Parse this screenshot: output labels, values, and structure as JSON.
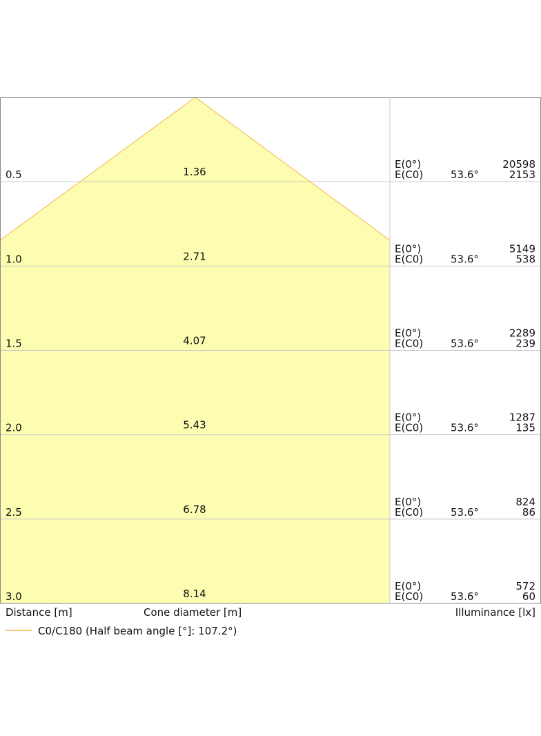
{
  "rows": [
    {
      "distance": "0.5",
      "diameter": "1.36",
      "e0_label": "E(0°)",
      "ec0_label": "E(C0)",
      "angle": "53.6°",
      "e0": "20598",
      "ec0": "2153"
    },
    {
      "distance": "1.0",
      "diameter": "2.71",
      "e0_label": "E(0°)",
      "ec0_label": "E(C0)",
      "angle": "53.6°",
      "e0": "5149",
      "ec0": "538"
    },
    {
      "distance": "1.5",
      "diameter": "4.07",
      "e0_label": "E(0°)",
      "ec0_label": "E(C0)",
      "angle": "53.6°",
      "e0": "2289",
      "ec0": "239"
    },
    {
      "distance": "2.0",
      "diameter": "5.43",
      "e0_label": "E(0°)",
      "ec0_label": "E(C0)",
      "angle": "53.6°",
      "e0": "1287",
      "ec0": "135"
    },
    {
      "distance": "2.5",
      "diameter": "6.78",
      "e0_label": "E(0°)",
      "ec0_label": "E(C0)",
      "angle": "53.6°",
      "e0": "824",
      "ec0": "86"
    },
    {
      "distance": "3.0",
      "diameter": "8.14",
      "e0_label": "E(0°)",
      "ec0_label": "E(C0)",
      "angle": "53.6°",
      "e0": "572",
      "ec0": "60"
    }
  ],
  "footer": {
    "distance": "Distance [m]",
    "diameter": "Cone diameter [m]",
    "illuminance": "Illuminance [lx]"
  },
  "legend": {
    "label": "C0/C180 (Half beam angle [°]: 107.2°)"
  }
}
